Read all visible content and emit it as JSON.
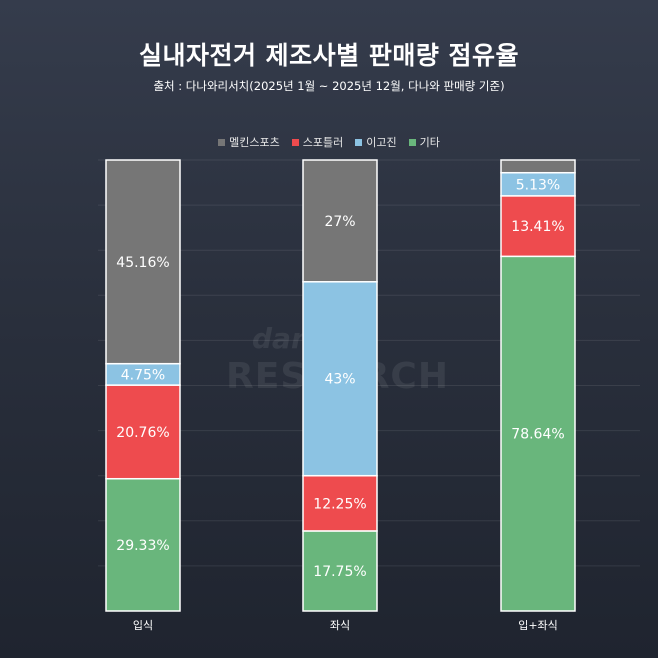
{
  "title": "실내자전거 제조사별 판매량 점유율",
  "subtitle": "출처 : 다나와리서치(2025년 1월 ~ 2025년 12월, 다나와 판매량 기준)",
  "watermark": {
    "top": "danawa",
    "bottom": "RESEARCH"
  },
  "colors": {
    "melkin": "#767676",
    "spotler": "#8cc3e3",
    "igojin": "#ee4b4e",
    "other": "#69b67c"
  },
  "chart_data": {
    "type": "bar",
    "stacked": true,
    "normalized_percent": true,
    "categories": [
      "입식",
      "좌식",
      "입+좌식"
    ],
    "series": [
      {
        "name": "기타",
        "color_key": "other",
        "values": [
          29.33,
          17.75,
          78.64
        ],
        "labels": [
          "29.33%",
          "17.75%",
          "78.64%"
        ]
      },
      {
        "name": "이고진",
        "color_key": "igojin",
        "values": [
          20.76,
          12.25,
          13.41
        ],
        "labels": [
          "20.76%",
          "12.25%",
          "13.41%"
        ]
      },
      {
        "name": "스포틀러",
        "color_key": "spotler",
        "values": [
          4.75,
          43,
          5.13
        ],
        "labels": [
          "4.75%",
          "43%",
          "5.13%"
        ]
      },
      {
        "name": "멜킨스포츠",
        "color_key": "melkin",
        "values": [
          45.16,
          27,
          2.82
        ],
        "labels": [
          "45.16%",
          "27%",
          ""
        ]
      }
    ],
    "legend_order": [
      "멜킨스포츠",
      "스포틀러",
      "이고진",
      "기타"
    ],
    "ylim": [
      0,
      100
    ],
    "grid": true,
    "legend_position": "top-center"
  }
}
